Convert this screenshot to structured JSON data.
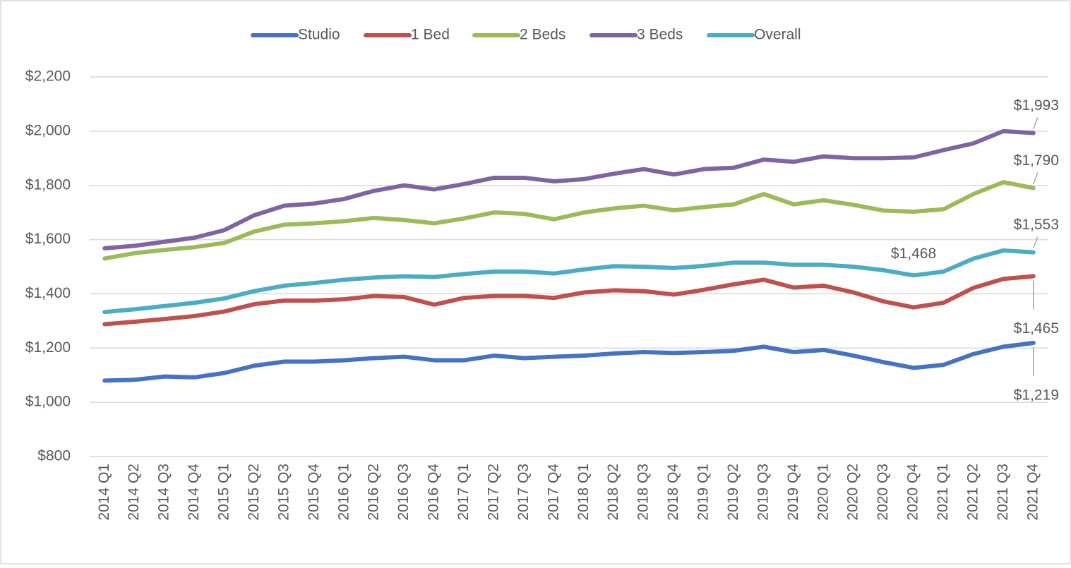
{
  "chart_data": {
    "type": "line",
    "categories": [
      "2014 Q1",
      "2014 Q2",
      "2014 Q3",
      "2014 Q4",
      "2015 Q1",
      "2015 Q2",
      "2015 Q3",
      "2015 Q4",
      "2016 Q1",
      "2016 Q2",
      "2016 Q3",
      "2016 Q4",
      "2017 Q1",
      "2017 Q2",
      "2017 Q3",
      "2017 Q4",
      "2018 Q1",
      "2018 Q2",
      "2018 Q3",
      "2018 Q4",
      "2019 Q1",
      "2019 Q2",
      "2019 Q3",
      "2019 Q4",
      "2020 Q1",
      "2020 Q2",
      "2020 Q3",
      "2020 Q4",
      "2021 Q1",
      "2021 Q2",
      "2021 Q3",
      "2021 Q4"
    ],
    "series": [
      {
        "name": "Studio",
        "color": "#4472c4",
        "values": [
          1080,
          1083,
          1095,
          1092,
          1108,
          1135,
          1150,
          1150,
          1155,
          1163,
          1168,
          1155,
          1155,
          1172,
          1163,
          1168,
          1172,
          1180,
          1185,
          1182,
          1185,
          1190,
          1205,
          1185,
          1193,
          1172,
          1148,
          1127,
          1138,
          1178,
          1205,
          1219
        ],
        "value_labels": [
          null,
          null,
          null,
          null,
          null,
          null,
          null,
          null,
          null,
          null,
          null,
          null,
          null,
          null,
          null,
          null,
          null,
          null,
          null,
          null,
          null,
          null,
          null,
          null,
          null,
          null,
          null,
          null,
          null,
          null,
          null,
          "$1,219"
        ]
      },
      {
        "name": "1 Bed",
        "color": "#c0504d",
        "values": [
          1288,
          1297,
          1307,
          1318,
          1335,
          1362,
          1375,
          1375,
          1380,
          1392,
          1388,
          1360,
          1385,
          1392,
          1392,
          1385,
          1405,
          1413,
          1410,
          1397,
          1415,
          1435,
          1452,
          1423,
          1430,
          1405,
          1372,
          1350,
          1367,
          1422,
          1455,
          1465
        ],
        "value_labels": [
          null,
          null,
          null,
          null,
          null,
          null,
          null,
          null,
          null,
          null,
          null,
          null,
          null,
          null,
          null,
          null,
          null,
          null,
          null,
          null,
          null,
          null,
          null,
          null,
          null,
          null,
          null,
          null,
          null,
          null,
          null,
          "$1,465"
        ]
      },
      {
        "name": "2 Beds",
        "color": "#9bbb59",
        "values": [
          1530,
          1550,
          1562,
          1572,
          1588,
          1630,
          1655,
          1660,
          1668,
          1680,
          1672,
          1660,
          1678,
          1700,
          1695,
          1675,
          1700,
          1715,
          1725,
          1708,
          1720,
          1730,
          1768,
          1730,
          1745,
          1728,
          1707,
          1703,
          1712,
          1768,
          1812,
          1790
        ],
        "value_labels": [
          null,
          null,
          null,
          null,
          null,
          null,
          null,
          null,
          null,
          null,
          null,
          null,
          null,
          null,
          null,
          null,
          null,
          null,
          null,
          null,
          null,
          null,
          null,
          null,
          null,
          null,
          null,
          null,
          null,
          null,
          null,
          "$1,790"
        ]
      },
      {
        "name": "3 Beds",
        "color": "#8064a2",
        "values": [
          1568,
          1577,
          1592,
          1607,
          1635,
          1690,
          1725,
          1733,
          1750,
          1780,
          1800,
          1785,
          1805,
          1828,
          1828,
          1815,
          1823,
          1843,
          1860,
          1840,
          1860,
          1865,
          1895,
          1887,
          1907,
          1900,
          1900,
          1903,
          1930,
          1955,
          2000,
          1993
        ],
        "value_labels": [
          null,
          null,
          null,
          null,
          null,
          null,
          null,
          null,
          null,
          null,
          null,
          null,
          null,
          null,
          null,
          null,
          null,
          null,
          null,
          null,
          null,
          null,
          null,
          null,
          null,
          null,
          null,
          null,
          null,
          null,
          null,
          "$1,993"
        ]
      },
      {
        "name": "Overall",
        "color": "#4bacc6",
        "values": [
          1333,
          1343,
          1355,
          1367,
          1383,
          1410,
          1430,
          1440,
          1452,
          1460,
          1465,
          1462,
          1473,
          1482,
          1482,
          1475,
          1490,
          1502,
          1500,
          1495,
          1503,
          1515,
          1515,
          1507,
          1507,
          1500,
          1487,
          1468,
          1482,
          1530,
          1560,
          1553
        ],
        "value_labels": [
          null,
          null,
          null,
          null,
          null,
          null,
          null,
          null,
          null,
          null,
          null,
          null,
          null,
          null,
          null,
          null,
          null,
          null,
          null,
          null,
          null,
          null,
          null,
          null,
          null,
          null,
          null,
          "$1,468",
          null,
          null,
          null,
          "$1,553"
        ]
      }
    ],
    "ylim": [
      800,
      2200
    ],
    "yticks": [
      {
        "value": 800,
        "label": "$800"
      },
      {
        "value": 1000,
        "label": "$1,000"
      },
      {
        "value": 1200,
        "label": "$1,200"
      },
      {
        "value": 1400,
        "label": "$1,400"
      },
      {
        "value": 1600,
        "label": "$1,600"
      },
      {
        "value": 1800,
        "label": "$1,800"
      },
      {
        "value": 2000,
        "label": "$2,000"
      },
      {
        "value": 2200,
        "label": "$2,200"
      }
    ],
    "grid": true,
    "legend": "top"
  }
}
